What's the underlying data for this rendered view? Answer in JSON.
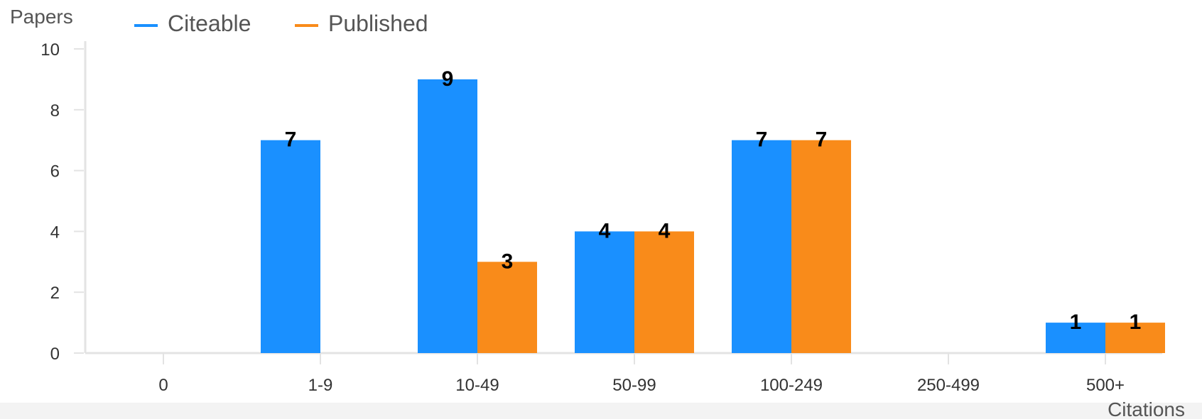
{
  "chart_data": {
    "type": "bar",
    "title": "",
    "xlabel": "Citations",
    "ylabel": "Papers",
    "categories": [
      "0",
      "1-9",
      "10-49",
      "50-99",
      "100-249",
      "250-499",
      "500+"
    ],
    "series": [
      {
        "name": "Citeable",
        "color": "#1a90ff",
        "values": [
          0,
          7,
          9,
          4,
          7,
          0,
          1
        ]
      },
      {
        "name": "Published",
        "color": "#f98b1a",
        "values": [
          0,
          0,
          3,
          4,
          7,
          0,
          1
        ]
      }
    ],
    "ylim": [
      0,
      10
    ],
    "yticks": [
      0,
      2,
      4,
      6,
      8,
      10
    ],
    "legend_position": "top-left",
    "grid": false
  }
}
